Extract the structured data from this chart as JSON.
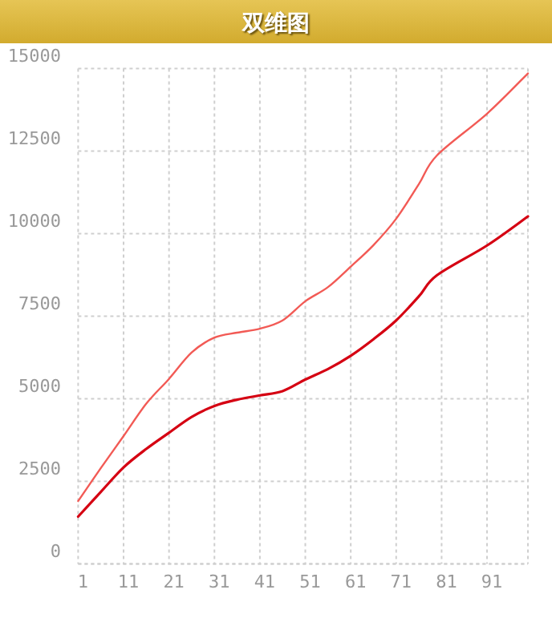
{
  "chart_data": {
    "type": "line",
    "title": "双维图",
    "x": [
      1,
      6,
      11,
      16,
      21,
      26,
      31,
      36,
      41,
      46,
      51,
      56,
      61,
      66,
      71,
      76,
      80,
      91,
      100
    ],
    "series": [
      {
        "color": "#f25a55",
        "values": [
          1900,
          2900,
          3870,
          4850,
          5600,
          6400,
          6850,
          7000,
          7120,
          7370,
          7950,
          8380,
          9000,
          9650,
          10450,
          11500,
          12370,
          13630,
          14850
        ]
      },
      {
        "color": "#d50012",
        "values": [
          1430,
          2180,
          2920,
          3480,
          3970,
          4450,
          4780,
          4970,
          5100,
          5230,
          5580,
          5900,
          6300,
          6800,
          7370,
          8100,
          8740,
          9640,
          10520
        ]
      }
    ],
    "xlim": [
      1,
      100
    ],
    "xticks": [
      1,
      11,
      21,
      31,
      41,
      51,
      61,
      71,
      81,
      91
    ],
    "ylim": [
      0,
      15000
    ],
    "yticks": [
      0,
      2500,
      5000,
      7500,
      10000,
      12500,
      15000
    ],
    "grid": true
  }
}
